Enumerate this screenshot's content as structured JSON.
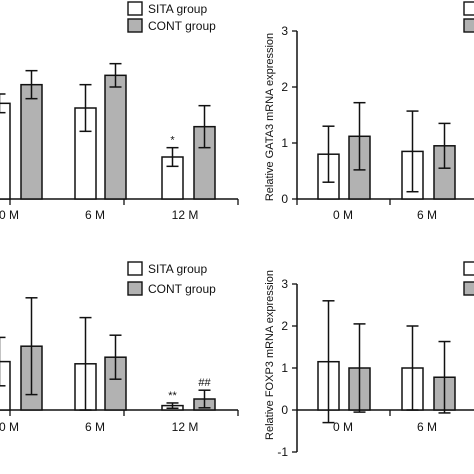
{
  "legend": {
    "sita": "SITA group",
    "cont": "CONT group"
  },
  "colors": {
    "sita": "#ffffff",
    "cont": "#b2b2b2",
    "ink": "#111111"
  },
  "chart_data": [
    {
      "id": "top-left",
      "type": "bar",
      "categories": [
        "0 M",
        "6 M",
        "12 M"
      ],
      "series": [
        {
          "name": "SITA group",
          "values": [
            2.05,
            1.95,
            0.9
          ],
          "error": [
            0.2,
            0.5,
            0.2
          ]
        },
        {
          "name": "CONT group",
          "values": [
            2.45,
            2.65,
            1.55
          ],
          "error": [
            0.3,
            0.25,
            0.45
          ]
        }
      ],
      "ylim": [
        0,
        3.6
      ],
      "annotations": [
        {
          "category": 2,
          "series": 0,
          "text": "*"
        }
      ],
      "ylabel": "",
      "xlabel": "",
      "title": "",
      "legend_position": "top-right"
    },
    {
      "id": "top-right",
      "type": "bar",
      "categories": [
        "0 M",
        "6 M"
      ],
      "series": [
        {
          "name": "SITA group",
          "values": [
            0.8,
            0.85
          ],
          "error": [
            0.5,
            0.72
          ]
        },
        {
          "name": "CONT group",
          "values": [
            1.12,
            0.95
          ],
          "error": [
            0.6,
            0.4
          ]
        }
      ],
      "ylim": [
        0,
        3
      ],
      "yticks": [
        0,
        1,
        2,
        3
      ],
      "ylabel": "Relative GATA3 mRNA expression",
      "xlabel": "",
      "title": "",
      "legend_position": "top-right"
    },
    {
      "id": "bottom-left",
      "type": "bar",
      "categories": [
        "0 M",
        "6 M",
        "12 M"
      ],
      "series": [
        {
          "name": "SITA group",
          "values": [
            1.1,
            1.05,
            0.1
          ],
          "error": [
            0.55,
            1.05,
            0.06
          ]
        },
        {
          "name": "CONT group",
          "values": [
            1.45,
            1.2,
            0.25
          ],
          "error": [
            1.1,
            0.5,
            0.2
          ]
        }
      ],
      "ylim": [
        0,
        3.5
      ],
      "annotations": [
        {
          "category": 2,
          "series": 0,
          "text": "**"
        },
        {
          "category": 2,
          "series": 1,
          "text": "##"
        }
      ],
      "ylabel": "",
      "xlabel": "",
      "title": "",
      "legend_position": "top-right"
    },
    {
      "id": "bottom-right",
      "type": "bar",
      "categories": [
        "0 M",
        "6 M"
      ],
      "series": [
        {
          "name": "SITA group",
          "values": [
            1.15,
            1.0
          ],
          "error": [
            1.45,
            1.0
          ]
        },
        {
          "name": "CONT group",
          "values": [
            1.0,
            0.78
          ],
          "error": [
            1.05,
            0.85
          ]
        }
      ],
      "ylim": [
        -1,
        3
      ],
      "yticks": [
        -1,
        0,
        1,
        2,
        3
      ],
      "ylabel": "Relative FOXP3 mRNA expression",
      "xlabel": "",
      "title": "",
      "legend_position": "top-right"
    }
  ]
}
